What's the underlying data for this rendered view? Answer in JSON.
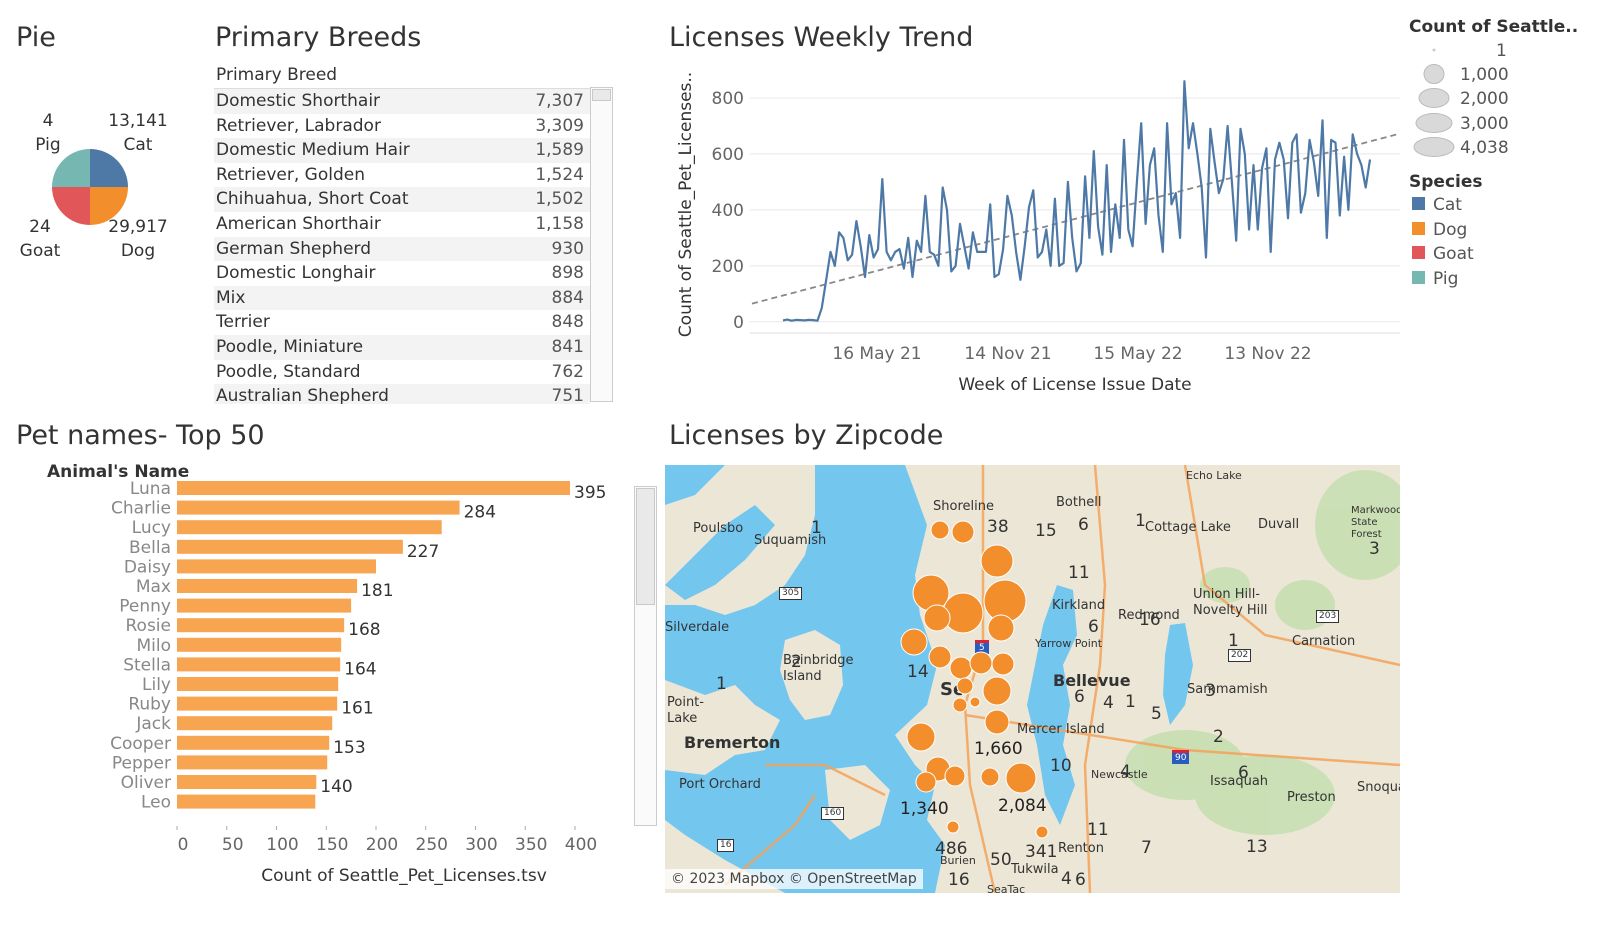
{
  "pie": {
    "title": "Pie",
    "slices": [
      {
        "name": "Cat",
        "value": "13,141",
        "color": "#4e79a7"
      },
      {
        "name": "Dog",
        "value": "29,917",
        "color": "#f28e2b"
      },
      {
        "name": "Goat",
        "value": "24",
        "color": "#e15759"
      },
      {
        "name": "Pig",
        "value": "4",
        "color": "#76b7b2"
      }
    ]
  },
  "breeds": {
    "title": "Primary Breeds",
    "column_header": "Primary Breed",
    "rows": [
      {
        "name": "Domestic Shorthair",
        "count": "7,307"
      },
      {
        "name": "Retriever, Labrador",
        "count": "3,309"
      },
      {
        "name": "Domestic Medium Hair",
        "count": "1,589"
      },
      {
        "name": "Retriever, Golden",
        "count": "1,524"
      },
      {
        "name": "Chihuahua, Short Coat",
        "count": "1,502"
      },
      {
        "name": "American Shorthair",
        "count": "1,158"
      },
      {
        "name": "German Shepherd",
        "count": "930"
      },
      {
        "name": "Domestic Longhair",
        "count": "898"
      },
      {
        "name": "Mix",
        "count": "884"
      },
      {
        "name": "Terrier",
        "count": "848"
      },
      {
        "name": "Poodle, Miniature",
        "count": "841"
      },
      {
        "name": "Poodle, Standard",
        "count": "762"
      },
      {
        "name": "Australian Shepherd",
        "count": "751"
      }
    ]
  },
  "trend": {
    "title": "Licenses Weekly Trend"
  },
  "legend": {
    "size_title": "Count of Seattle..",
    "sizes": [
      "1",
      "1,000",
      "2,000",
      "3,000",
      "4,038"
    ],
    "species_title": "Species",
    "species": [
      {
        "name": "Cat",
        "color": "#4e79a7"
      },
      {
        "name": "Dog",
        "color": "#f28e2b"
      },
      {
        "name": "Goat",
        "color": "#e15759"
      },
      {
        "name": "Pig",
        "color": "#76b7b2"
      }
    ]
  },
  "names": {
    "title": "Pet names- Top 50",
    "row_header": "Animal's Name"
  },
  "map": {
    "title": "Licenses by Zipcode",
    "attribution": "© 2023 Mapbox © OpenStreetMap",
    "places": [
      "Shoreline",
      "Bothell",
      "Echo Lake",
      "Poulsbo",
      "Suquamish",
      "Cottage Lake",
      "Duvall",
      "Markwood State Forest",
      "Kirkland",
      "Redmond",
      "Union Hill-Novelty Hill",
      "Carnation",
      "Silverdale",
      "Yarrow Point",
      "Bainbridge Island",
      "Bellevue",
      "Sammamish",
      "Point-Lake",
      "Bremerton",
      "Mercer Island",
      "Port Orchard",
      "Newcastle",
      "Issaquah",
      "Preston",
      "Snoqualmie",
      "Renton",
      "Burien",
      "Tukwila",
      "SeaTac",
      "Seattle"
    ],
    "highways": [
      "305",
      "5",
      "202",
      "203",
      "90",
      "160",
      "16"
    ],
    "counts": [
      "1",
      "38",
      "15",
      "6",
      "1",
      "3",
      "11",
      "16",
      "6",
      "1",
      "14",
      "2",
      "1",
      "6",
      "4",
      "1",
      "5",
      "3",
      "2",
      "1,660",
      "10",
      "4",
      "6",
      "1,340",
      "2,084",
      "11",
      "486",
      "50",
      "341",
      "7",
      "13",
      "16",
      "4",
      "6"
    ]
  },
  "chart_data": [
    {
      "type": "pie",
      "title": "Pie",
      "categories": [
        "Cat",
        "Dog",
        "Goat",
        "Pig"
      ],
      "values": [
        13141,
        29917,
        24,
        4
      ]
    },
    {
      "type": "table",
      "title": "Primary Breeds",
      "columns": [
        "Primary Breed",
        ""
      ],
      "rows": [
        [
          "Domestic Shorthair",
          7307
        ],
        [
          "Retriever, Labrador",
          3309
        ],
        [
          "Domestic Medium Hair",
          1589
        ],
        [
          "Retriever, Golden",
          1524
        ],
        [
          "Chihuahua, Short Coat",
          1502
        ],
        [
          "American Shorthair",
          1158
        ],
        [
          "German Shepherd",
          930
        ],
        [
          "Domestic Longhair",
          898
        ],
        [
          "Mix",
          884
        ],
        [
          "Terrier",
          848
        ],
        [
          "Poodle, Miniature",
          841
        ],
        [
          "Poodle, Standard",
          762
        ],
        [
          "Australian Shepherd",
          751
        ]
      ]
    },
    {
      "type": "line",
      "title": "Licenses Weekly Trend",
      "xlabel": "Week of License Issue Date",
      "ylabel": "Count of Seattle_Pet_Licenses..",
      "x_ticks": [
        "16 May 21",
        "14 Nov 21",
        "15 May 22",
        "13 Nov 22"
      ],
      "y_ticks": [
        0,
        200,
        400,
        600,
        800
      ],
      "ylim": [
        -40,
        900
      ],
      "grid": true,
      "trend_line": {
        "start": 65,
        "end": 670
      },
      "series": [
        {
          "values": [
            5,
            8,
            4,
            7,
            6,
            5,
            7,
            6,
            4,
            50,
            150,
            250,
            200,
            320,
            300,
            220,
            240,
            360,
            270,
            160,
            310,
            230,
            260,
            510,
            250,
            220,
            250,
            260,
            190,
            300,
            160,
            290,
            250,
            450,
            250,
            240,
            200,
            480,
            400,
            180,
            200,
            350,
            270,
            190,
            320,
            250,
            250,
            250,
            420,
            160,
            170,
            260,
            450,
            380,
            250,
            150,
            270,
            410,
            470,
            230,
            250,
            330,
            200,
            440,
            200,
            210,
            500,
            300,
            180,
            210,
            520,
            300,
            610,
            340,
            240,
            560,
            250,
            420,
            300,
            650,
            330,
            270,
            500,
            710,
            350,
            560,
            620,
            380,
            250,
            710,
            420,
            460,
            300,
            860,
            620,
            710,
            600,
            480,
            230,
            690,
            570,
            460,
            510,
            700,
            500,
            290,
            690,
            600,
            330,
            560,
            330,
            550,
            620,
            250,
            580,
            640,
            580,
            370,
            640,
            670,
            390,
            460,
            650,
            570,
            450,
            720,
            300,
            650,
            640,
            380,
            590,
            400,
            670,
            600,
            560,
            480,
            580
          ]
        }
      ]
    },
    {
      "type": "bar",
      "title": "Pet names- Top 50",
      "ylabel": "Animal's Name",
      "xlabel": "Count of Seattle_Pet_Licenses.tsv",
      "x_ticks": [
        0,
        50,
        100,
        150,
        200,
        250,
        300,
        350,
        400
      ],
      "xlim": [
        0,
        420
      ],
      "categories": [
        "Luna",
        "Charlie",
        "Lucy",
        "Bella",
        "Daisy",
        "Max",
        "Penny",
        "Rosie",
        "Milo",
        "Stella",
        "Lily",
        "Ruby",
        "Jack",
        "Cooper",
        "Pepper",
        "Oliver",
        "Leo"
      ],
      "values": [
        395,
        284,
        266,
        227,
        200,
        181,
        175,
        168,
        165,
        164,
        162,
        161,
        156,
        153,
        151,
        140,
        139
      ],
      "data_labels": [
        "395",
        "284",
        "",
        "227",
        "",
        "181",
        "",
        "168",
        "",
        "164",
        "",
        "161",
        "",
        "153",
        "",
        "140",
        ""
      ],
      "color": "#f8a552"
    }
  ]
}
